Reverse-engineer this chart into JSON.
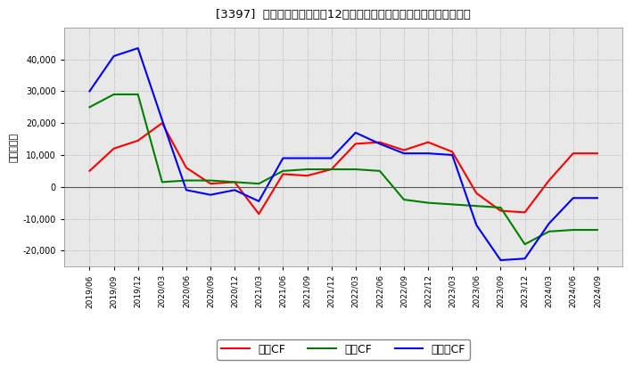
{
  "title": "[3397]  キャッシュフローの12か月移動合計の対前年同期増減額の推移",
  "ylabel": "（百万円）",
  "background_color": "#ffffff",
  "plot_bg_color": "#e8e8e8",
  "grid_color": "#999999",
  "x_labels": [
    "2019/06",
    "2019/09",
    "2019/12",
    "2020/03",
    "2020/06",
    "2020/09",
    "2020/12",
    "2021/03",
    "2021/06",
    "2021/09",
    "2021/12",
    "2022/03",
    "2022/06",
    "2022/09",
    "2022/12",
    "2023/03",
    "2023/06",
    "2023/09",
    "2023/12",
    "2024/03",
    "2024/06",
    "2024/09"
  ],
  "operating_cf": [
    5000,
    12000,
    14500,
    20000,
    6000,
    1000,
    1500,
    -8500,
    4000,
    3500,
    5500,
    13500,
    14000,
    11500,
    14000,
    11000,
    -2000,
    -7500,
    -8000,
    2000,
    10500,
    10500
  ],
  "investing_cf": [
    25000,
    29000,
    29000,
    1500,
    2000,
    2000,
    1500,
    1000,
    5000,
    5500,
    5500,
    5500,
    5000,
    -4000,
    -5000,
    -5500,
    -6000,
    -6500,
    -18000,
    -14000,
    -13500,
    -13500
  ],
  "free_cf": [
    30000,
    41000,
    43500,
    21000,
    -1000,
    -2500,
    -1000,
    -4500,
    9000,
    9000,
    9000,
    17000,
    13500,
    10500,
    10500,
    10000,
    -12000,
    -23000,
    -22500,
    -11500,
    -3500,
    -3500
  ],
  "operating_color": "#ff0000",
  "investing_color": "#008000",
  "free_color": "#0000ff",
  "ylim": [
    -25000,
    50000
  ],
  "yticks": [
    -20000,
    -10000,
    0,
    10000,
    20000,
    30000,
    40000
  ],
  "legend_labels": [
    "営業CF",
    "投資CF",
    "フリーCF"
  ]
}
